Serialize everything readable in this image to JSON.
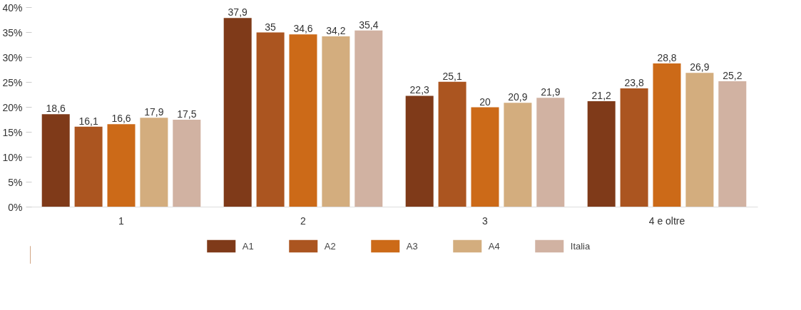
{
  "chart_data": {
    "type": "bar",
    "categories": [
      "1",
      "2",
      "3",
      "4 e oltre"
    ],
    "series": [
      {
        "name": "A1",
        "color": "#7f3a19",
        "values": [
          18.6,
          37.9,
          22.3,
          21.2
        ],
        "value_labels": [
          "18,6",
          "37,9",
          "22,3",
          "21,2"
        ]
      },
      {
        "name": "A2",
        "color": "#ab5520",
        "values": [
          16.1,
          35,
          25.1,
          23.8
        ],
        "value_labels": [
          "16,1",
          "35",
          "25,1",
          "23,8"
        ]
      },
      {
        "name": "A3",
        "color": "#cc6a18",
        "values": [
          16.6,
          34.6,
          20,
          28.8
        ],
        "value_labels": [
          "16,6",
          "34,6",
          "20",
          "28,8"
        ]
      },
      {
        "name": "A4",
        "color": "#d3ad7e",
        "values": [
          17.9,
          34.2,
          20.9,
          26.9
        ],
        "value_labels": [
          "17,9",
          "34,2",
          "20,9",
          "26,9"
        ]
      },
      {
        "name": "Italia",
        "color": "#d1b2a2",
        "values": [
          17.5,
          35.4,
          21.9,
          25.2
        ],
        "value_labels": [
          "17,5",
          "35,4",
          "21,9",
          "25,2"
        ]
      }
    ],
    "ylim": [
      0,
      40
    ],
    "yticks": [
      {
        "value": 0,
        "label": "0%"
      },
      {
        "value": 5,
        "label": "5%"
      },
      {
        "value": 10,
        "label": "10%"
      },
      {
        "value": 15,
        "label": "15%"
      },
      {
        "value": 20,
        "label": "20%"
      },
      {
        "value": 25,
        "label": "25%"
      },
      {
        "value": 30,
        "label": "30%"
      },
      {
        "value": 35,
        "label": "35%"
      },
      {
        "value": 40,
        "label": "40%"
      }
    ],
    "legend": "bottom",
    "grid": false
  }
}
